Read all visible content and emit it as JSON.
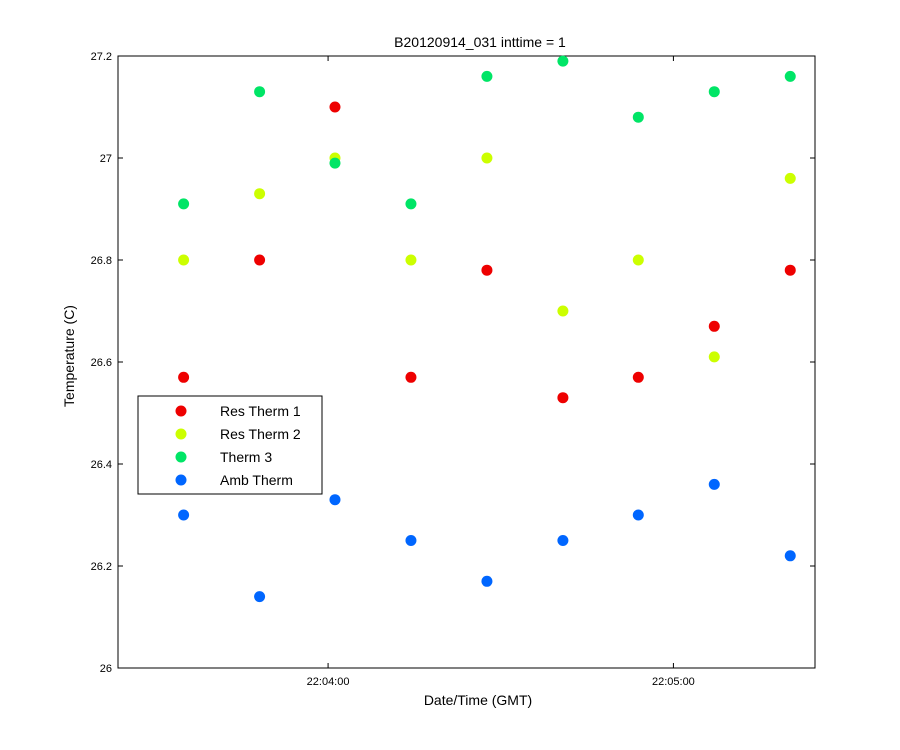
{
  "chart_data": {
    "type": "scatter",
    "title": "B20120914_031 inttime = 1",
    "xlabel": "Date/Time (GMT)",
    "ylabel": "Temperature (C)",
    "x_unit": "seconds since 22:00:00 GMT",
    "xlim": [
      203.5,
      324.6
    ],
    "ylim": [
      26.0,
      27.2
    ],
    "x_ticks": [
      240,
      300
    ],
    "x_tick_labels": [
      "22:04:00",
      "22:05:00"
    ],
    "y_ticks": [
      26.0,
      26.2,
      26.4,
      26.6,
      26.8,
      27.0,
      27.2
    ],
    "y_tick_labels": [
      "26",
      "26.2",
      "26.4",
      "26.6",
      "26.8",
      "27",
      "27.2"
    ],
    "grid": false,
    "legend_position": "middle-left",
    "series": [
      {
        "name": "Res Therm 1",
        "color": "#ee0000",
        "points": [
          [
            214.9,
            26.57
          ],
          [
            228.1,
            26.8
          ],
          [
            241.2,
            27.1
          ],
          [
            254.4,
            26.57
          ],
          [
            267.6,
            26.78
          ],
          [
            280.8,
            26.53
          ],
          [
            293.9,
            26.57
          ],
          [
            307.1,
            26.67
          ],
          [
            320.3,
            26.78
          ]
        ]
      },
      {
        "name": "Res Therm 2",
        "color": "#ccff00",
        "points": [
          [
            214.9,
            26.8
          ],
          [
            228.1,
            26.93
          ],
          [
            241.2,
            27.0
          ],
          [
            254.4,
            26.8
          ],
          [
            267.6,
            27.0
          ],
          [
            280.8,
            26.7
          ],
          [
            293.9,
            26.8
          ],
          [
            307.1,
            26.61
          ],
          [
            320.3,
            26.96
          ]
        ]
      },
      {
        "name": "Therm 3",
        "color": "#00e566",
        "points": [
          [
            214.9,
            26.91
          ],
          [
            228.1,
            27.13
          ],
          [
            241.2,
            26.99
          ],
          [
            254.4,
            26.91
          ],
          [
            267.6,
            27.16
          ],
          [
            280.8,
            27.19
          ],
          [
            293.9,
            27.08
          ],
          [
            307.1,
            27.13
          ],
          [
            320.3,
            27.16
          ]
        ]
      },
      {
        "name": "Amb Therm",
        "color": "#0066ff",
        "points": [
          [
            214.9,
            26.3
          ],
          [
            228.1,
            26.14
          ],
          [
            241.2,
            26.33
          ],
          [
            254.4,
            26.25
          ],
          [
            267.6,
            26.17
          ],
          [
            280.8,
            26.25
          ],
          [
            293.9,
            26.3
          ],
          [
            307.1,
            26.36
          ],
          [
            320.3,
            26.22
          ]
        ]
      }
    ]
  }
}
